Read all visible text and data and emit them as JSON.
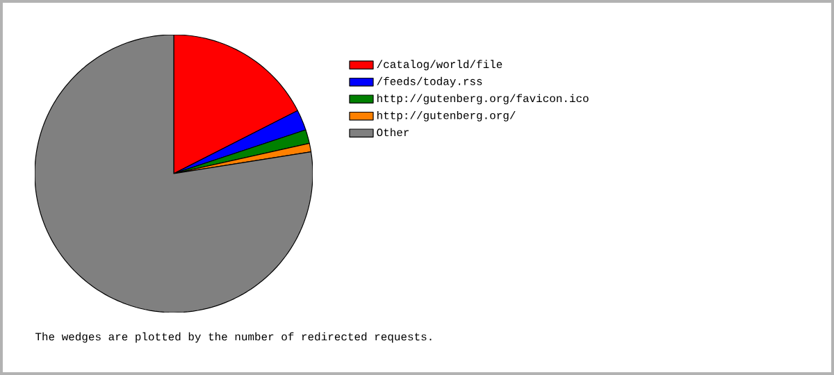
{
  "chart_data": {
    "type": "pie",
    "categories": [
      "/catalog/world/file",
      "/feeds/today.rss",
      "http://gutenberg.org/favicon.ico",
      "http://gutenberg.org/",
      "Other"
    ],
    "values": [
      17.5,
      2.4,
      1.6,
      1.0,
      77.5
    ],
    "colors": [
      "#ff0000",
      "#0000ff",
      "#008000",
      "#ff8000",
      "#808080"
    ],
    "legend": "right",
    "annotations": [
      "The wedges are plotted by the number of redirected requests."
    ]
  }
}
